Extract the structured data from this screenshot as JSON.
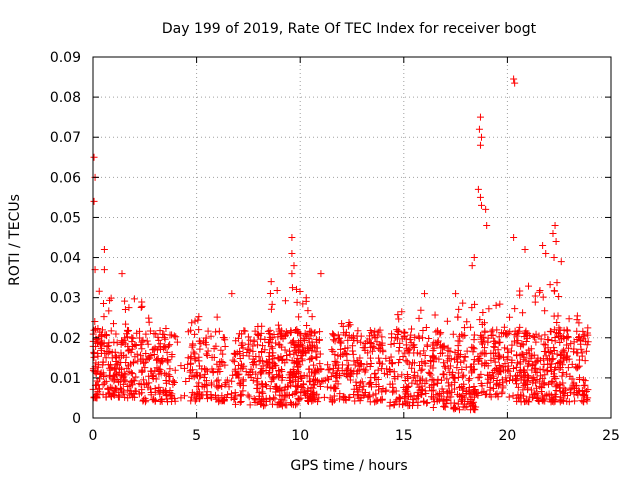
{
  "chart_data": {
    "type": "scatter",
    "title": "Day 199 of 2019, Rate Of TEC Index for receiver bogt",
    "xlabel": "GPS time / hours",
    "ylabel": "ROTI / TECUs",
    "xlim": [
      0,
      25
    ],
    "ylim": [
      0,
      0.09
    ],
    "x_ticks": [
      0,
      5,
      10,
      15,
      20,
      25
    ],
    "x_tick_labels": [
      "0",
      "5",
      "10",
      "15",
      "20",
      "25"
    ],
    "y_ticks": [
      0,
      0.01,
      0.02,
      0.03,
      0.04,
      0.05,
      0.06,
      0.07,
      0.08,
      0.09
    ],
    "y_tick_labels": [
      "0",
      "0.01",
      "0.02",
      "0.03",
      "0.04",
      "0.05",
      "0.06",
      "0.07",
      "0.08",
      "0.09"
    ],
    "grid": true,
    "marker": "+",
    "color": "#ff0000",
    "series": [
      {
        "name": "ROTI",
        "highlights": [
          {
            "x": 0.05,
            "y": 0.065
          },
          {
            "x": 0.1,
            "y": 0.06
          },
          {
            "x": 0.05,
            "y": 0.054
          },
          {
            "x": 0.1,
            "y": 0.037
          },
          {
            "x": 0.55,
            "y": 0.042
          },
          {
            "x": 0.55,
            "y": 0.037
          },
          {
            "x": 1.4,
            "y": 0.036
          },
          {
            "x": 6.7,
            "y": 0.031
          },
          {
            "x": 9.6,
            "y": 0.045
          },
          {
            "x": 9.6,
            "y": 0.041
          },
          {
            "x": 9.7,
            "y": 0.038
          },
          {
            "x": 9.6,
            "y": 0.036
          },
          {
            "x": 18.7,
            "y": 0.075
          },
          {
            "x": 18.65,
            "y": 0.072
          },
          {
            "x": 18.75,
            "y": 0.07
          },
          {
            "x": 18.7,
            "y": 0.068
          },
          {
            "x": 18.6,
            "y": 0.057
          },
          {
            "x": 18.7,
            "y": 0.055
          },
          {
            "x": 18.75,
            "y": 0.053
          },
          {
            "x": 18.95,
            "y": 0.052
          },
          {
            "x": 19.0,
            "y": 0.048
          },
          {
            "x": 18.4,
            "y": 0.04
          },
          {
            "x": 18.3,
            "y": 0.038
          },
          {
            "x": 20.3,
            "y": 0.0845
          },
          {
            "x": 20.35,
            "y": 0.0835
          },
          {
            "x": 20.3,
            "y": 0.045
          },
          {
            "x": 20.85,
            "y": 0.042
          },
          {
            "x": 22.3,
            "y": 0.048
          },
          {
            "x": 22.2,
            "y": 0.046
          },
          {
            "x": 22.35,
            "y": 0.044
          },
          {
            "x": 21.7,
            "y": 0.043
          },
          {
            "x": 21.85,
            "y": 0.041
          },
          {
            "x": 22.25,
            "y": 0.04
          },
          {
            "x": 22.6,
            "y": 0.039
          },
          {
            "x": 11.0,
            "y": 0.036
          },
          {
            "x": 8.6,
            "y": 0.034
          },
          {
            "x": 17.5,
            "y": 0.031
          },
          {
            "x": 16.0,
            "y": 0.031
          }
        ],
        "clusters": [
          {
            "x_from": 0.0,
            "x_to": 0.9,
            "y_min": 0.005,
            "y_max": 0.032,
            "n": 110
          },
          {
            "x_from": 0.9,
            "x_to": 2.4,
            "y_min": 0.005,
            "y_max": 0.03,
            "n": 140
          },
          {
            "x_from": 2.4,
            "x_to": 4.0,
            "y_min": 0.004,
            "y_max": 0.025,
            "n": 130
          },
          {
            "x_from": 4.0,
            "x_to": 4.6,
            "y_min": 0.004,
            "y_max": 0.022,
            "n": 8
          },
          {
            "x_from": 4.6,
            "x_to": 6.4,
            "y_min": 0.004,
            "y_max": 0.026,
            "n": 130
          },
          {
            "x_from": 6.4,
            "x_to": 6.8,
            "y_min": 0.005,
            "y_max": 0.015,
            "n": 10
          },
          {
            "x_from": 6.8,
            "x_to": 8.5,
            "y_min": 0.003,
            "y_max": 0.024,
            "n": 140
          },
          {
            "x_from": 8.5,
            "x_to": 10.1,
            "y_min": 0.003,
            "y_max": 0.033,
            "n": 200
          },
          {
            "x_from": 10.1,
            "x_to": 11.0,
            "y_min": 0.004,
            "y_max": 0.03,
            "n": 110
          },
          {
            "x_from": 11.0,
            "x_to": 11.5,
            "y_min": 0.005,
            "y_max": 0.015,
            "n": 12
          },
          {
            "x_from": 11.5,
            "x_to": 13.0,
            "y_min": 0.004,
            "y_max": 0.024,
            "n": 130
          },
          {
            "x_from": 13.0,
            "x_to": 14.0,
            "y_min": 0.004,
            "y_max": 0.022,
            "n": 80
          },
          {
            "x_from": 14.0,
            "x_to": 14.3,
            "y_min": 0.005,
            "y_max": 0.015,
            "n": 6
          },
          {
            "x_from": 14.3,
            "x_to": 16.4,
            "y_min": 0.003,
            "y_max": 0.027,
            "n": 170
          },
          {
            "x_from": 16.4,
            "x_to": 18.5,
            "y_min": 0.002,
            "y_max": 0.029,
            "n": 200
          },
          {
            "x_from": 18.5,
            "x_to": 20.4,
            "y_min": 0.005,
            "y_max": 0.03,
            "n": 150
          },
          {
            "x_from": 20.4,
            "x_to": 22.5,
            "y_min": 0.004,
            "y_max": 0.034,
            "n": 230
          },
          {
            "x_from": 22.5,
            "x_to": 23.9,
            "y_min": 0.004,
            "y_max": 0.03,
            "n": 130
          }
        ]
      }
    ]
  }
}
